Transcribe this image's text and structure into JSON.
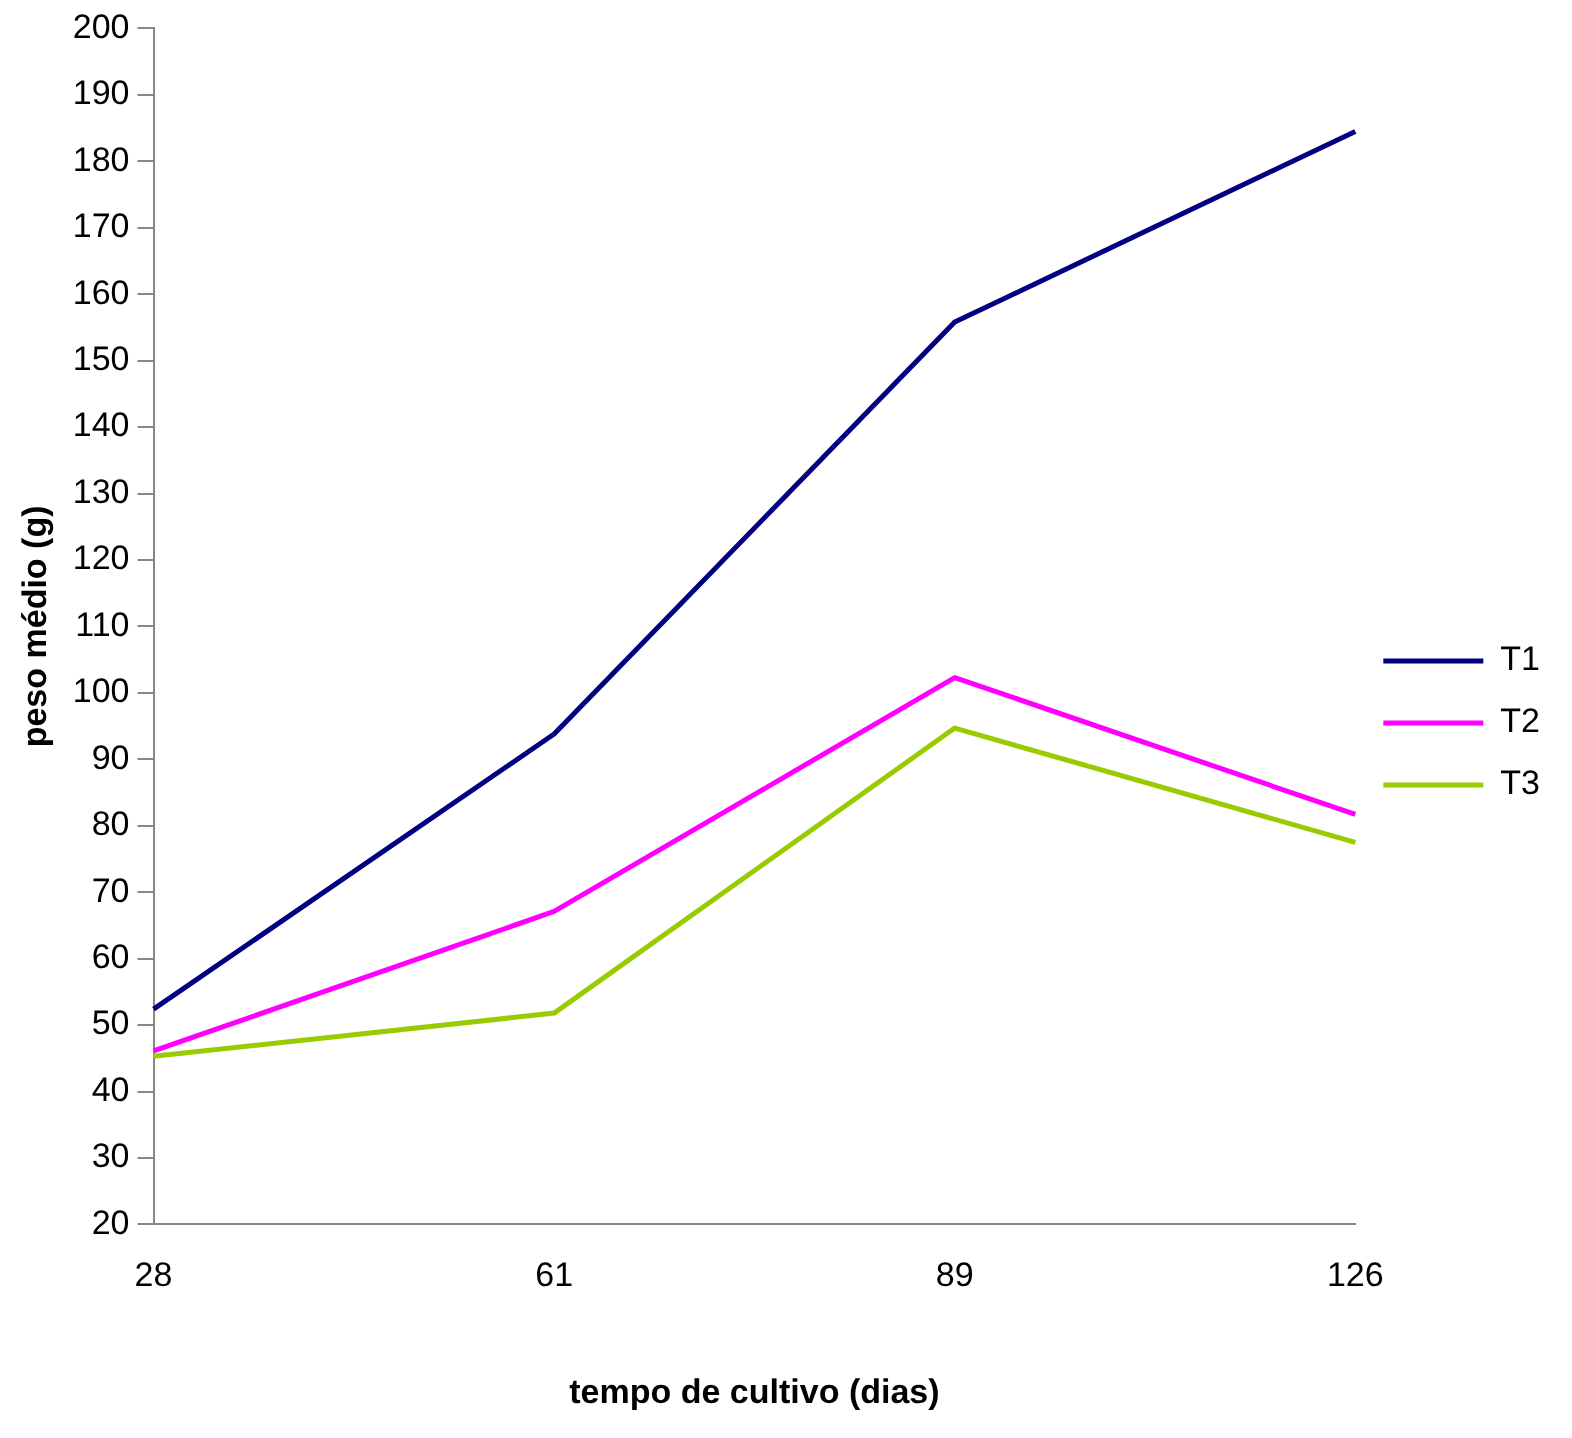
{
  "chart_data": {
    "type": "line",
    "xlabel": "tempo de cultivo (dias)",
    "ylabel": "peso médio (g)",
    "categories": [
      "28",
      "61",
      "89",
      "126"
    ],
    "series": [
      {
        "name": "T1",
        "color": "#000080",
        "values": [
          52.4,
          93.8,
          155.8,
          184.5
        ]
      },
      {
        "name": "T2",
        "color": "#ff00ff",
        "values": [
          46.1,
          67.1,
          102.3,
          81.7
        ]
      },
      {
        "name": "T3",
        "color": "#99cc00",
        "values": [
          45.3,
          51.8,
          94.7,
          77.5
        ]
      }
    ],
    "ylim": [
      20,
      200
    ],
    "yticks": [
      20,
      30,
      40,
      50,
      60,
      70,
      80,
      90,
      100,
      110,
      120,
      130,
      140,
      150,
      160,
      170,
      180,
      190,
      200
    ],
    "grid": false,
    "legend": "right",
    "marker": "none",
    "line_style": "solid"
  }
}
